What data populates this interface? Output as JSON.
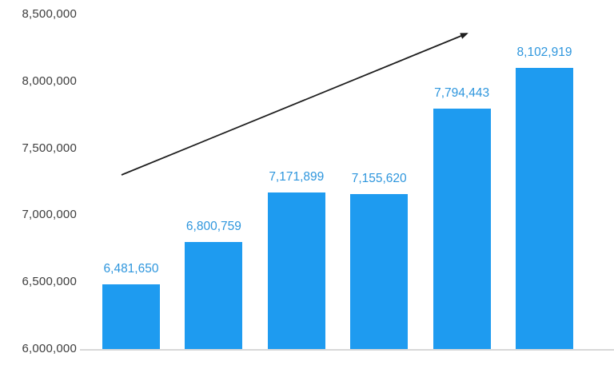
{
  "chart_data": {
    "type": "bar",
    "title": "",
    "xlabel": "",
    "ylabel": "",
    "categories": [],
    "values": [
      6481650,
      6800759,
      7171899,
      7155620,
      7794443,
      8102919
    ],
    "labels": [
      "6,481,650",
      "6,800,759",
      "7,171,899",
      "7,155,620",
      "7,794,443",
      "8,102,919"
    ],
    "yticks": [
      "8,500,000",
      "8,000,000",
      "7,500,000",
      "7,000,000",
      "6,500,000",
      "6,000,000"
    ],
    "ylim": [
      6000000,
      8500000
    ],
    "grid": false,
    "legend": "none",
    "annotations": [
      "upward trend arrow from lower-left to upper-right"
    ],
    "bar_color": "#1e9bf0",
    "label_color": "#2e96dd",
    "axis_text_color": "#3d3d3d",
    "arrow_color": "#1f1f1f",
    "baseline_color": "#d8d8d8"
  }
}
